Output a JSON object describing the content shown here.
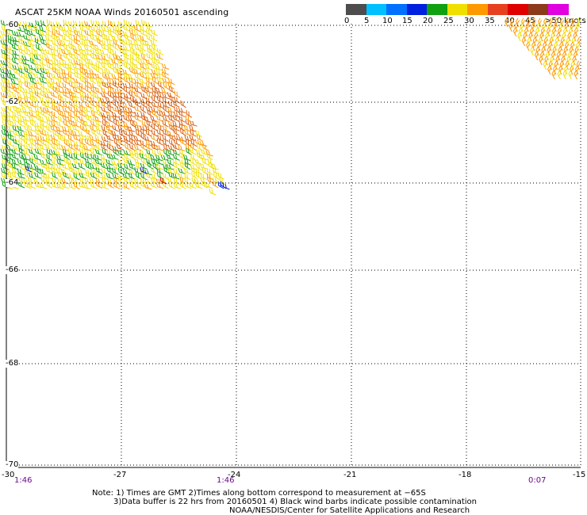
{
  "title": "ASCAT 25KM NOAA Winds 20160501 ascending",
  "legend": {
    "colors": [
      "#4d4d4d",
      "#00c0ff",
      "#0070ff",
      "#0020e0",
      "#10a010",
      "#f0e000",
      "#ff9900",
      "#e64020",
      "#e00000",
      "#8b3a1a",
      "#e000e0",
      "#6a00a8"
    ],
    "labels": [
      "0",
      "5",
      "10",
      "15",
      "20",
      "25",
      "30",
      "35",
      "40",
      "45",
      ">50 knots"
    ]
  },
  "latitudes": [
    "-60",
    "-62",
    "-64",
    "-66",
    "-68",
    "-70"
  ],
  "longitudes": [
    "-30",
    "-27",
    "-24",
    "-21",
    "-18",
    "-15"
  ],
  "times": [
    "1:46",
    "1:46",
    "0:07"
  ],
  "notes": [
    "Note: 1) Times are GMT 2)Times along bottom correspond to measurement at −65S",
    "3)Data buffer is 22 hrs from 20160501 4) Black wind barbs indicate possible contamination",
    "NOAA/NESDIS/Center for Satellite Applications and Research"
  ],
  "barb_colors": {
    "green": "#10a010",
    "yellow": "#f0e000",
    "orange": "#ff9900",
    "dark_orange": "#d86010",
    "blue": "#0020e0",
    "red": "#e00000"
  }
}
